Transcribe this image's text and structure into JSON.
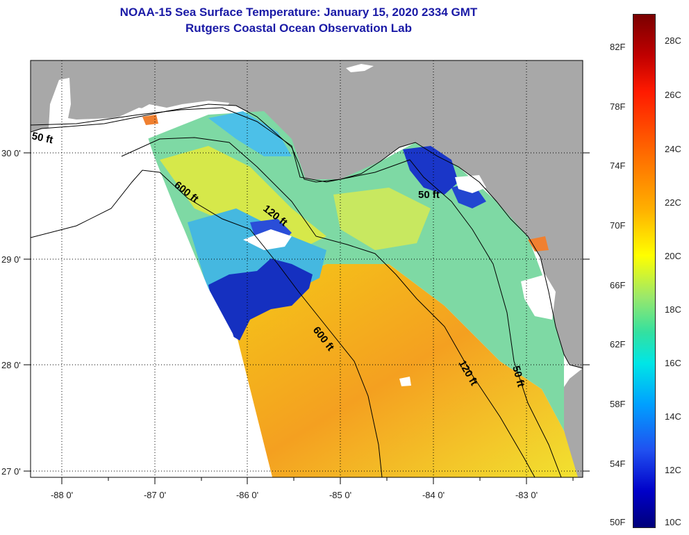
{
  "header": {
    "title_line1": "NOAA-15 Sea Surface Temperature:  January 15, 2020 2334 GMT",
    "title_line2": "Rutgers Coastal Ocean Observation Lab"
  },
  "map": {
    "lon_ticks": [
      "-88 0'",
      "-87 0'",
      "-86 0'",
      "-85 0'",
      "-84 0'",
      "-83 0'"
    ],
    "lat_ticks": [
      "30 0'",
      "29 0'",
      "28 0'",
      "27 0'"
    ],
    "depth_contour_labels": [
      "50 ft",
      "600 ft",
      "120 ft",
      "50 ft",
      "600 ft",
      "120 ft",
      "50 ft"
    ],
    "colors": {
      "land": "#a8a8a8",
      "no_data": "#ffffff",
      "coastline": "#000000",
      "grid": "#000000"
    }
  },
  "colorbar": {
    "fahrenheit_labels": [
      "82F",
      "78F",
      "74F",
      "70F",
      "66F",
      "62F",
      "58F",
      "54F",
      "50F"
    ],
    "celsius_labels": [
      "28C",
      "26C",
      "24C",
      "22C",
      "20C",
      "18C",
      "16C",
      "14C",
      "12C",
      "10C"
    ],
    "range_c": [
      10,
      29
    ],
    "gradient_colors": [
      "#7a0000",
      "#ff1a00",
      "#ff6a00",
      "#ffb000",
      "#ffff00",
      "#9be86a",
      "#00e6e6",
      "#00a0ff",
      "#0000c8",
      "#00007a"
    ]
  }
}
